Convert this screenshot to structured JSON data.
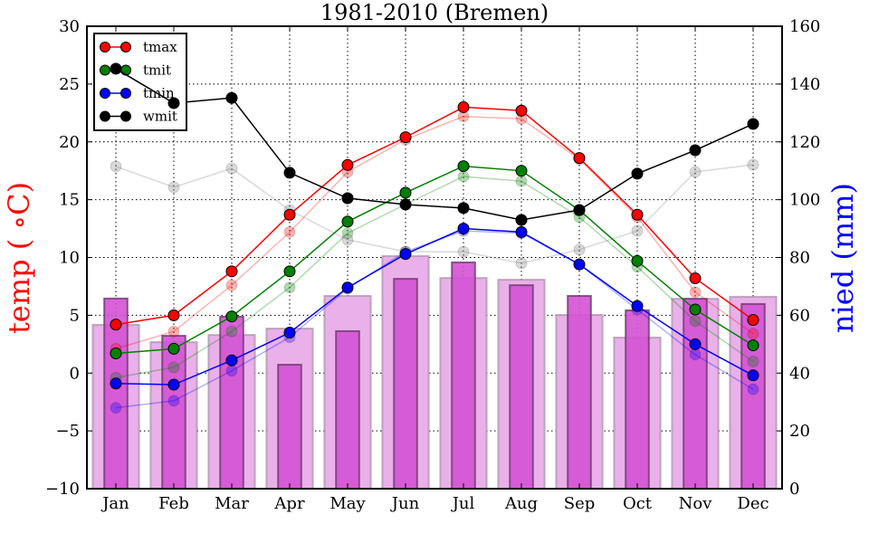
{
  "chart_data": {
    "type": "line",
    "title": "1981-2010 (Bremen)",
    "xlabel": "",
    "ylabel_left": "temp ($^\\circ$C)",
    "ylabel_left_display": "temp ( ∘C)",
    "ylabel_right": "nied (mm)",
    "categories": [
      "Jan",
      "Feb",
      "Mar",
      "Apr",
      "May",
      "Jun",
      "Jul",
      "Aug",
      "Sep",
      "Oct",
      "Nov",
      "Dec"
    ],
    "ylim_left": [
      -10,
      30
    ],
    "yticks_left": [
      -10,
      -5,
      0,
      5,
      10,
      15,
      20,
      25,
      30
    ],
    "ytick_labels_left": [
      "−10",
      "−5",
      "0",
      "5",
      "10",
      "15",
      "20",
      "25",
      "30"
    ],
    "ylim_right": [
      0,
      160
    ],
    "yticks_right": [
      0,
      20,
      40,
      60,
      80,
      100,
      120,
      140,
      160
    ],
    "ytick_labels_right": [
      "0",
      "20",
      "40",
      "60",
      "80",
      "100",
      "120",
      "140",
      "160"
    ],
    "grid": true,
    "legend_position": "top-left",
    "legend": [
      {
        "name": "tmax",
        "color": "#ff0000"
      },
      {
        "name": "tmit",
        "color": "#008000"
      },
      {
        "name": "tmin",
        "color": "#0000ff"
      },
      {
        "name": "wmit",
        "color": "#000000"
      }
    ],
    "series": [
      {
        "name": "tmax",
        "axis": "left",
        "color": "#ff0000",
        "faded": false,
        "values": [
          4.2,
          5.0,
          8.8,
          13.7,
          18.0,
          20.4,
          23.0,
          22.7,
          18.6,
          13.7,
          8.2,
          4.6
        ]
      },
      {
        "name": "tmit",
        "axis": "left",
        "color": "#008000",
        "faded": false,
        "values": [
          1.7,
          2.1,
          4.9,
          8.8,
          13.1,
          15.6,
          17.9,
          17.5,
          14.1,
          9.7,
          5.5,
          2.4
        ]
      },
      {
        "name": "tmin",
        "axis": "left",
        "color": "#0000ff",
        "faded": false,
        "values": [
          -0.9,
          -1.0,
          1.1,
          3.5,
          7.4,
          10.3,
          12.5,
          12.2,
          9.4,
          5.8,
          2.5,
          -0.2
        ]
      },
      {
        "name": "wmit",
        "axis": "right",
        "color": "#000000",
        "faded": false,
        "values": [
          145.3,
          133.4,
          135.2,
          109.3,
          100.5,
          98.3,
          97.1,
          93.0,
          96.4,
          109.0,
          117.1,
          126.2
        ]
      },
      {
        "name": "tmax (reference)",
        "axis": "left",
        "color": "#ff0000",
        "faded": true,
        "values": [
          2.1,
          3.6,
          7.6,
          12.2,
          17.4,
          20.2,
          22.2,
          22.0,
          18.5,
          13.5,
          7.0,
          3.4
        ]
      },
      {
        "name": "tmit (reference)",
        "axis": "left",
        "color": "#008000",
        "faded": true,
        "values": [
          -0.4,
          0.5,
          3.6,
          7.4,
          12.1,
          14.6,
          17.0,
          16.6,
          13.5,
          9.2,
          4.5,
          1.0
        ]
      },
      {
        "name": "tmin (reference)",
        "axis": "left",
        "color": "#0000ff",
        "faded": true,
        "values": [
          -3.0,
          -2.4,
          0.2,
          3.1,
          7.3,
          10.5,
          12.3,
          12.1,
          9.4,
          5.5,
          1.6,
          -1.4
        ]
      },
      {
        "name": "wmit (reference)",
        "axis": "right",
        "color": "#808080",
        "faded": true,
        "values": [
          111.5,
          104.3,
          110.8,
          96.4,
          86.1,
          82.0,
          82.0,
          78.0,
          82.7,
          89.2,
          109.6,
          112.1
        ]
      }
    ],
    "bars": [
      {
        "name": "nied (reference)",
        "axis": "right",
        "color": "#e9b0e9",
        "width": "wide",
        "values": [
          56.7,
          50.7,
          53.2,
          55.4,
          66.7,
          80.5,
          72.9,
          72.3,
          60.1,
          52.3,
          65.7,
          66.4
        ]
      },
      {
        "name": "nied",
        "axis": "right",
        "color": "#d452d4",
        "width": "narrow",
        "values": [
          65.8,
          52.9,
          59.5,
          42.9,
          54.5,
          72.6,
          78.3,
          70.4,
          66.7,
          61.7,
          65.7,
          63.9
        ]
      }
    ]
  }
}
